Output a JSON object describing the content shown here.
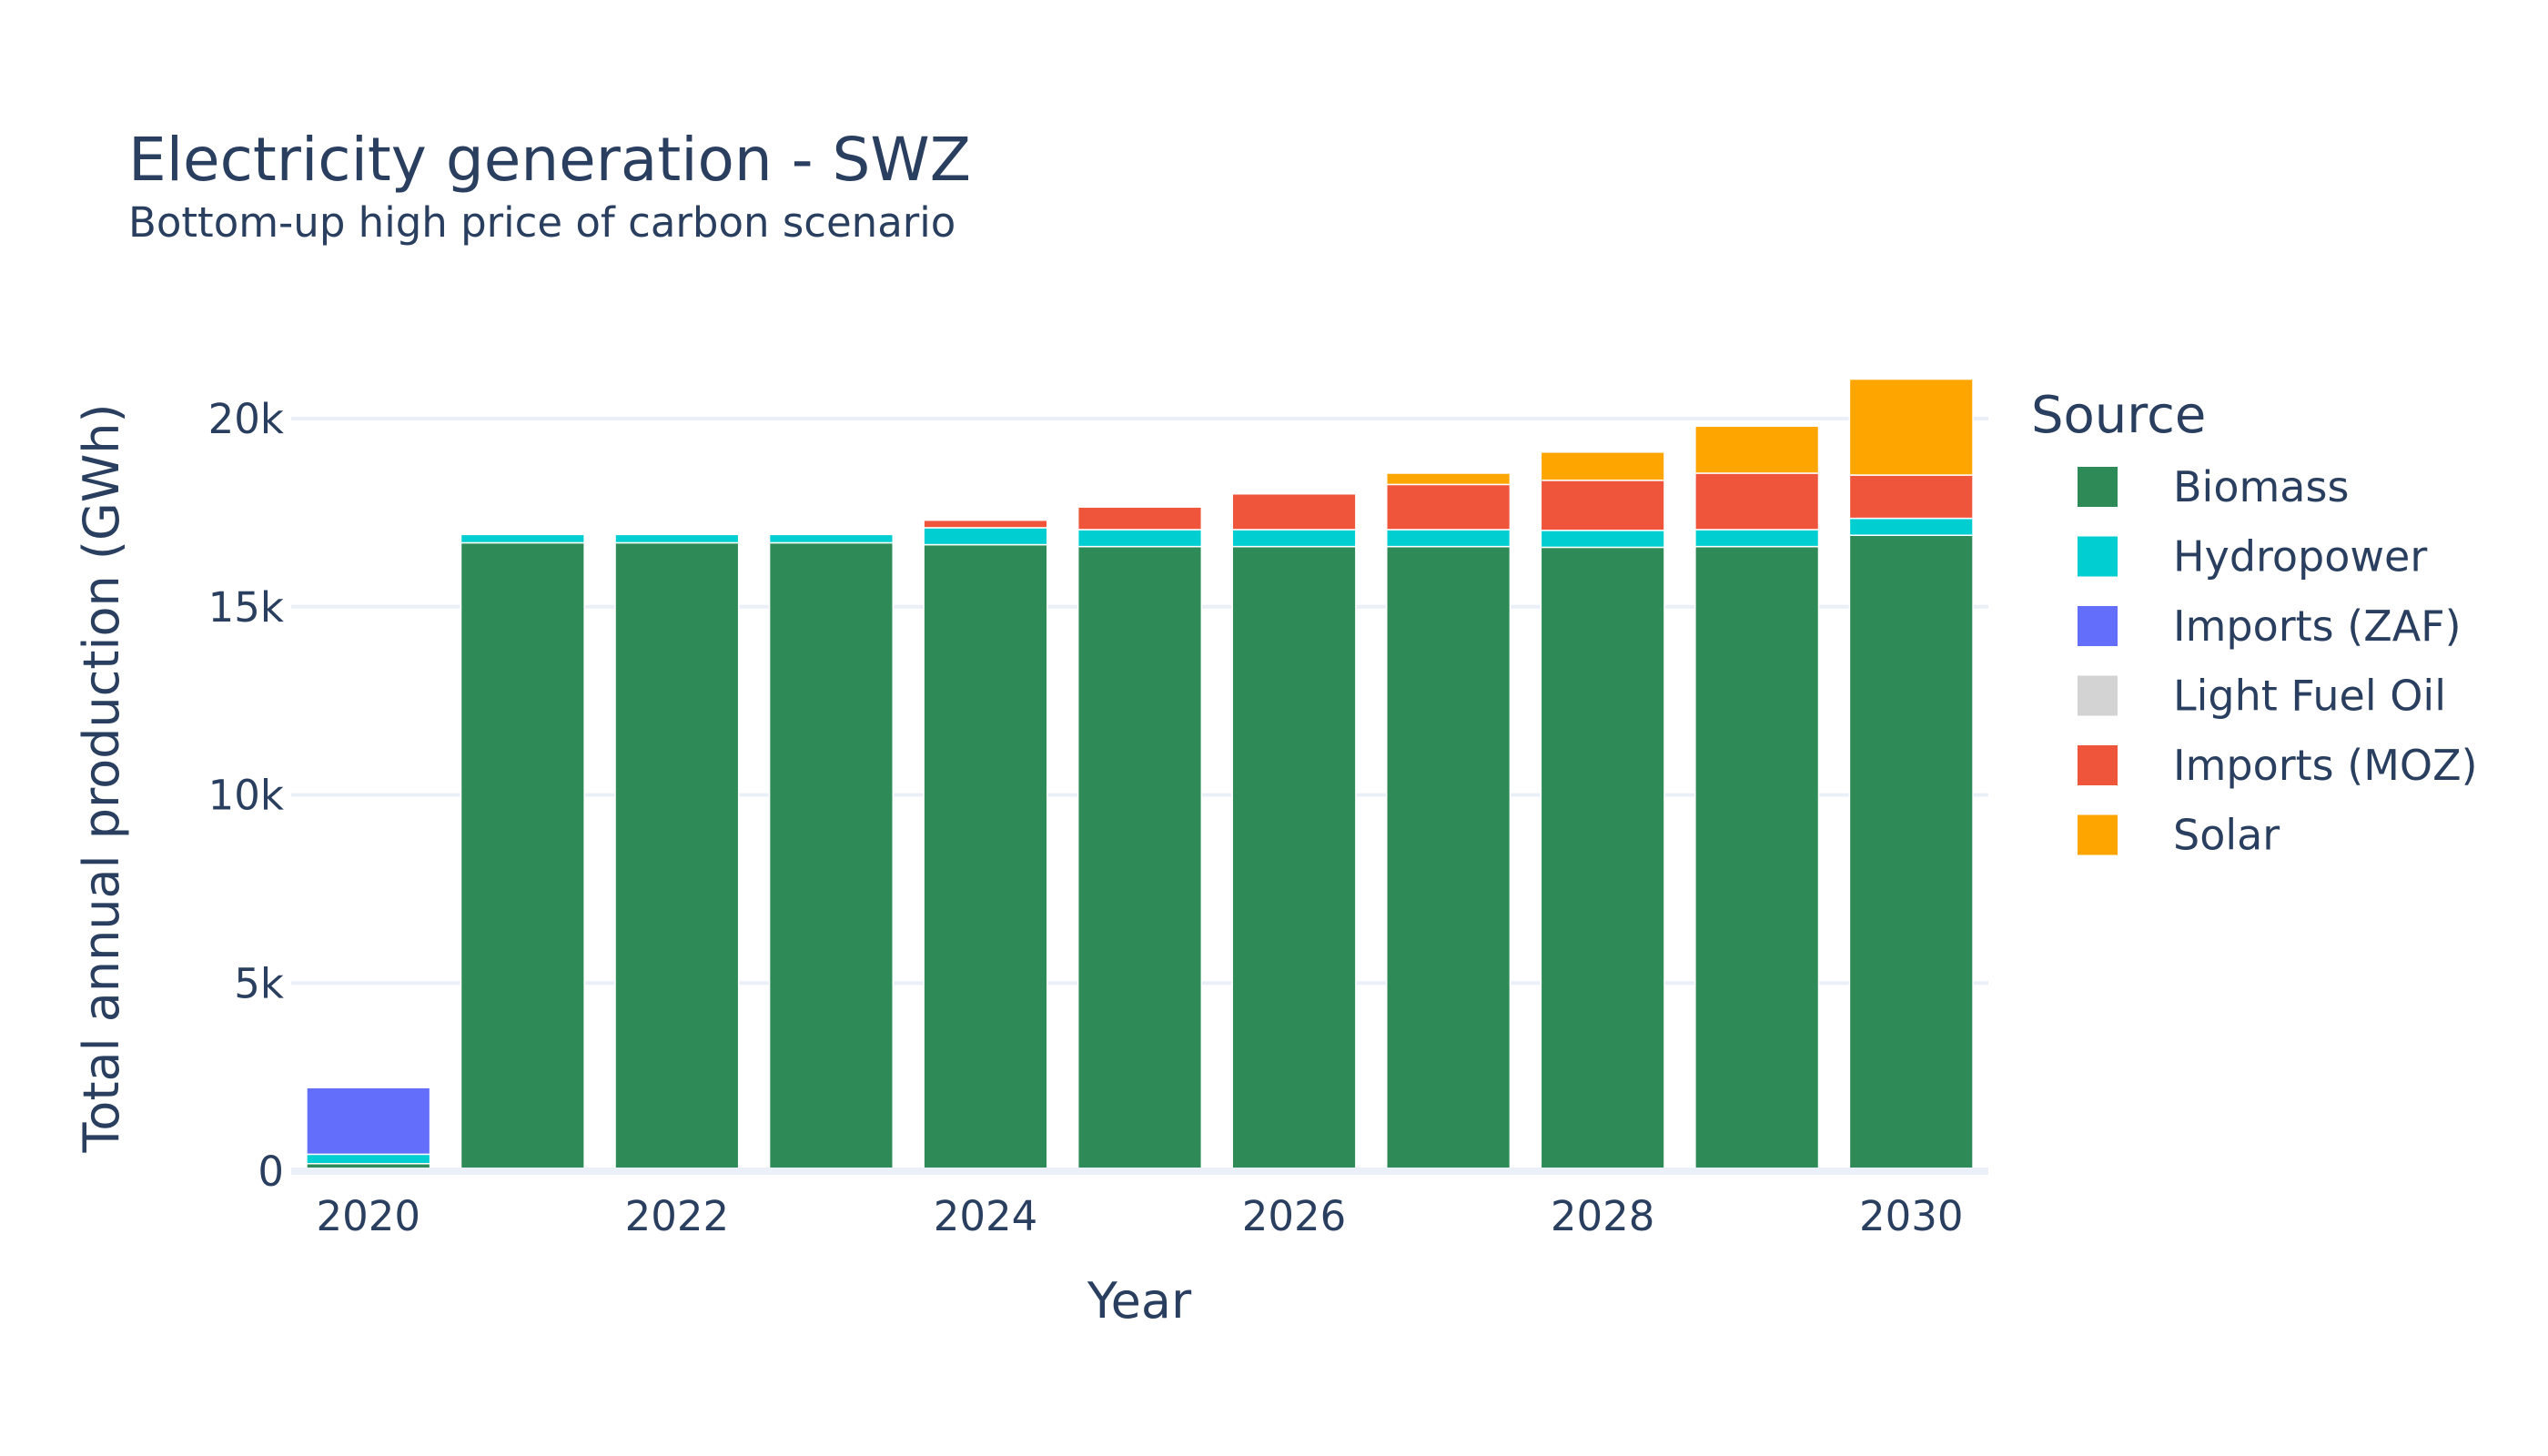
{
  "chart_data": {
    "type": "bar",
    "stacked": true,
    "title": "Electricity generation - SWZ",
    "subtitle": "Bottom-up high price of carbon scenario",
    "xlabel": "Year",
    "ylabel": "Total annual production (GWh)",
    "legend_title": "Source",
    "legend_position": "right",
    "grid": true,
    "ylim": [
      0,
      21500
    ],
    "y_ticks": [
      {
        "value": 0,
        "label": "0"
      },
      {
        "value": 5000,
        "label": "5k"
      },
      {
        "value": 10000,
        "label": "10k"
      },
      {
        "value": 15000,
        "label": "15k"
      },
      {
        "value": 20000,
        "label": "20k"
      }
    ],
    "x_tick_labels": [
      "2020",
      "2022",
      "2024",
      "2026",
      "2028",
      "2030"
    ],
    "categories": [
      2020,
      2021,
      2022,
      2023,
      2024,
      2025,
      2026,
      2027,
      2028,
      2029,
      2030
    ],
    "series": [
      {
        "name": "Biomass",
        "color": "#2e8b57",
        "values": [
          200,
          16700,
          16700,
          16700,
          16650,
          16600,
          16600,
          16600,
          16580,
          16600,
          16900
        ]
      },
      {
        "name": "Hydropower",
        "color": "#00ced1",
        "values": [
          250,
          220,
          220,
          220,
          450,
          450,
          450,
          450,
          450,
          450,
          450
        ]
      },
      {
        "name": "Imports (ZAF)",
        "color": "#636efa",
        "values": [
          1770,
          0,
          0,
          0,
          0,
          0,
          0,
          0,
          0,
          0,
          0
        ]
      },
      {
        "name": "Light Fuel Oil",
        "color": "#d3d3d3",
        "values": [
          0,
          0,
          0,
          0,
          0,
          0,
          0,
          0,
          0,
          0,
          0
        ]
      },
      {
        "name": "Imports (MOZ)",
        "color": "#ef553b",
        "values": [
          0,
          0,
          0,
          0,
          200,
          600,
          950,
          1200,
          1330,
          1500,
          1150
        ]
      },
      {
        "name": "Solar",
        "color": "#ffa500",
        "values": [
          0,
          0,
          0,
          0,
          0,
          0,
          0,
          300,
          750,
          1250,
          2550
        ]
      }
    ]
  }
}
